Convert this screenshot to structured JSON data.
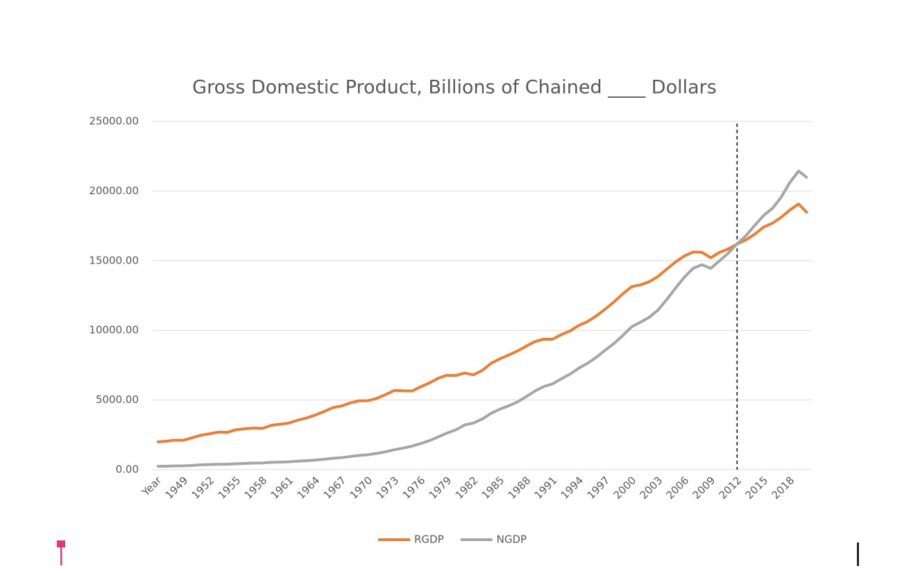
{
  "chart_data": {
    "type": "line",
    "title": "Gross Domestic Product, Billions of Chained ____ Dollars",
    "categories": [
      "Year",
      null,
      null,
      "1949",
      null,
      null,
      "1952",
      null,
      null,
      "1955",
      null,
      null,
      "1958",
      null,
      null,
      "1961",
      null,
      null,
      "1964",
      null,
      null,
      "1967",
      null,
      null,
      "1970",
      null,
      null,
      "1973",
      null,
      null,
      "1976",
      null,
      null,
      "1979",
      null,
      null,
      "1982",
      null,
      null,
      "1985",
      null,
      null,
      "1988",
      null,
      null,
      "1991",
      null,
      null,
      "1994",
      null,
      null,
      "1997",
      null,
      null,
      "2000",
      null,
      null,
      "2003",
      null,
      null,
      "2006",
      null,
      null,
      "2009",
      null,
      null,
      "2012",
      null,
      null,
      "2015",
      null,
      null,
      "2018",
      null,
      null
    ],
    "series": [
      {
        "name": "RGDP",
        "color": "#ed7d31",
        "values": [
          1990,
          2034,
          2119,
          2107,
          2290,
          2475,
          2576,
          2697,
          2680,
          2871,
          2931,
          2988,
          2960,
          3179,
          3262,
          3345,
          3550,
          3705,
          3918,
          4173,
          4448,
          4570,
          4795,
          4942,
          4951,
          5117,
          5387,
          5690,
          5657,
          5644,
          5950,
          6225,
          6568,
          6776,
          6759,
          6931,
          6806,
          7118,
          7632,
          7951,
          8227,
          8512,
          8868,
          9193,
          9371,
          9361,
          9691,
          9958,
          10358,
          10637,
          11038,
          11529,
          12046,
          12621,
          13138,
          13263,
          13488,
          13866,
          14400,
          14912,
          15338,
          15626,
          15605,
          15209,
          15599,
          15841,
          16197,
          16495,
          16900,
          17404,
          17689,
          18108,
          18638,
          19073,
          18422
        ]
      },
      {
        "name": "NGDP",
        "color": "#a5a5a5",
        "values": [
          240,
          244,
          270,
          272,
          300,
          347,
          367,
          389,
          391,
          426,
          450,
          474,
          481,
          522,
          543,
          563,
          605,
          639,
          686,
          744,
          815,
          862,
          943,
          1019,
          1073,
          1165,
          1280,
          1429,
          1546,
          1684,
          1873,
          2082,
          2352,
          2627,
          2857,
          3207,
          3344,
          3634,
          4037,
          4339,
          4580,
          4855,
          5236,
          5642,
          5963,
          6158,
          6520,
          6859,
          7287,
          7640,
          8073,
          8578,
          9063,
          9631,
          10252,
          10582,
          10936,
          11458,
          12214,
          13037,
          13815,
          14452,
          14713,
          14449,
          14992,
          15543,
          16197,
          16785,
          17527,
          18238,
          18745,
          19543,
          20612,
          21433,
          20937
        ]
      }
    ],
    "ylim": [
      0,
      25000
    ],
    "yticks": [
      {
        "value": 0,
        "label": "0.00"
      },
      {
        "value": 5000,
        "label": "5000.00"
      },
      {
        "value": 10000,
        "label": "10000.00"
      },
      {
        "value": 15000,
        "label": "15000.00"
      },
      {
        "value": 20000,
        "label": "20000.00"
      },
      {
        "value": 25000,
        "label": "25000.00"
      }
    ],
    "grid": true,
    "reference_category": "2012",
    "legend": "bottom"
  }
}
